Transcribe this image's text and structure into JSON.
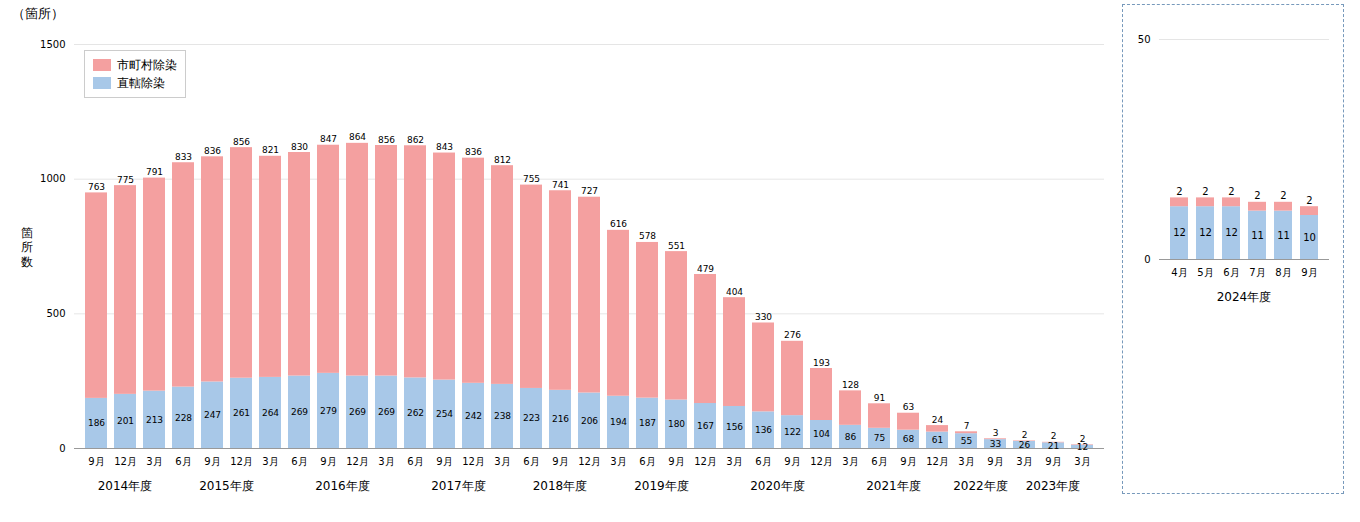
{
  "chart_data": [
    {
      "type": "bar",
      "title": "（箇所）",
      "ylabel": "箇\n所\n数",
      "stacked": true,
      "data_labels": true,
      "grid": true,
      "legend": "top-left",
      "categories": [
        "9月",
        "12月",
        "3月",
        "6月",
        "9月",
        "12月",
        "3月",
        "6月",
        "9月",
        "12月",
        "3月",
        "6月",
        "9月",
        "12月",
        "3月",
        "6月",
        "9月",
        "12月",
        "3月",
        "6月",
        "9月",
        "12月",
        "3月",
        "6月",
        "9月",
        "12月",
        "3月",
        "6月",
        "9月",
        "12月",
        "3月",
        "9月",
        "3月",
        "9月",
        "3月"
      ],
      "groups": [
        {
          "label": "2014年度",
          "start": 0,
          "end": 2
        },
        {
          "label": "2015年度",
          "start": 3,
          "end": 6
        },
        {
          "label": "2016年度",
          "start": 7,
          "end": 10
        },
        {
          "label": "2017年度",
          "start": 11,
          "end": 14
        },
        {
          "label": "2018年度",
          "start": 15,
          "end": 17
        },
        {
          "label": "2019年度",
          "start": 18,
          "end": 21
        },
        {
          "label": "2020年度",
          "start": 22,
          "end": 25
        },
        {
          "label": "2021年度",
          "start": 26,
          "end": 29
        },
        {
          "label": "2022年度",
          "start": 30,
          "end": 31
        },
        {
          "label": "2023年度",
          "start": 32,
          "end": 34
        }
      ],
      "series": [
        {
          "name": "市町村除染",
          "color": "#F4A0A0",
          "values": [
            763,
            775,
            791,
            833,
            836,
            856,
            821,
            830,
            847,
            864,
            856,
            862,
            843,
            836,
            812,
            755,
            741,
            727,
            616,
            578,
            551,
            479,
            404,
            330,
            276,
            193,
            128,
            91,
            63,
            24,
            7,
            3,
            2,
            2,
            2
          ]
        },
        {
          "name": "直轄除染",
          "color": "#A8C8E8",
          "values": [
            186,
            201,
            213,
            228,
            247,
            261,
            264,
            269,
            279,
            269,
            269,
            262,
            254,
            242,
            238,
            223,
            216,
            206,
            194,
            187,
            180,
            167,
            156,
            136,
            122,
            104,
            86,
            75,
            68,
            61,
            55,
            33,
            26,
            21,
            12
          ]
        }
      ],
      "ylim": [
        0,
        1500
      ],
      "yticks": [
        0,
        500,
        1000,
        1500
      ]
    },
    {
      "type": "bar",
      "stacked": true,
      "data_labels": true,
      "grid": true,
      "categories": [
        "4月",
        "5月",
        "6月",
        "7月",
        "8月",
        "9月"
      ],
      "groups": [
        {
          "label": "2024年度",
          "start": 0,
          "end": 5
        }
      ],
      "series": [
        {
          "name": "市町村除染",
          "color": "#F4A0A0",
          "values": [
            2,
            2,
            2,
            2,
            2,
            2
          ]
        },
        {
          "name": "直轄除染",
          "color": "#A8C8E8",
          "values": [
            12,
            12,
            12,
            11,
            11,
            10
          ]
        }
      ],
      "ylim": [
        0,
        50
      ],
      "yticks": [
        0,
        50
      ]
    }
  ]
}
